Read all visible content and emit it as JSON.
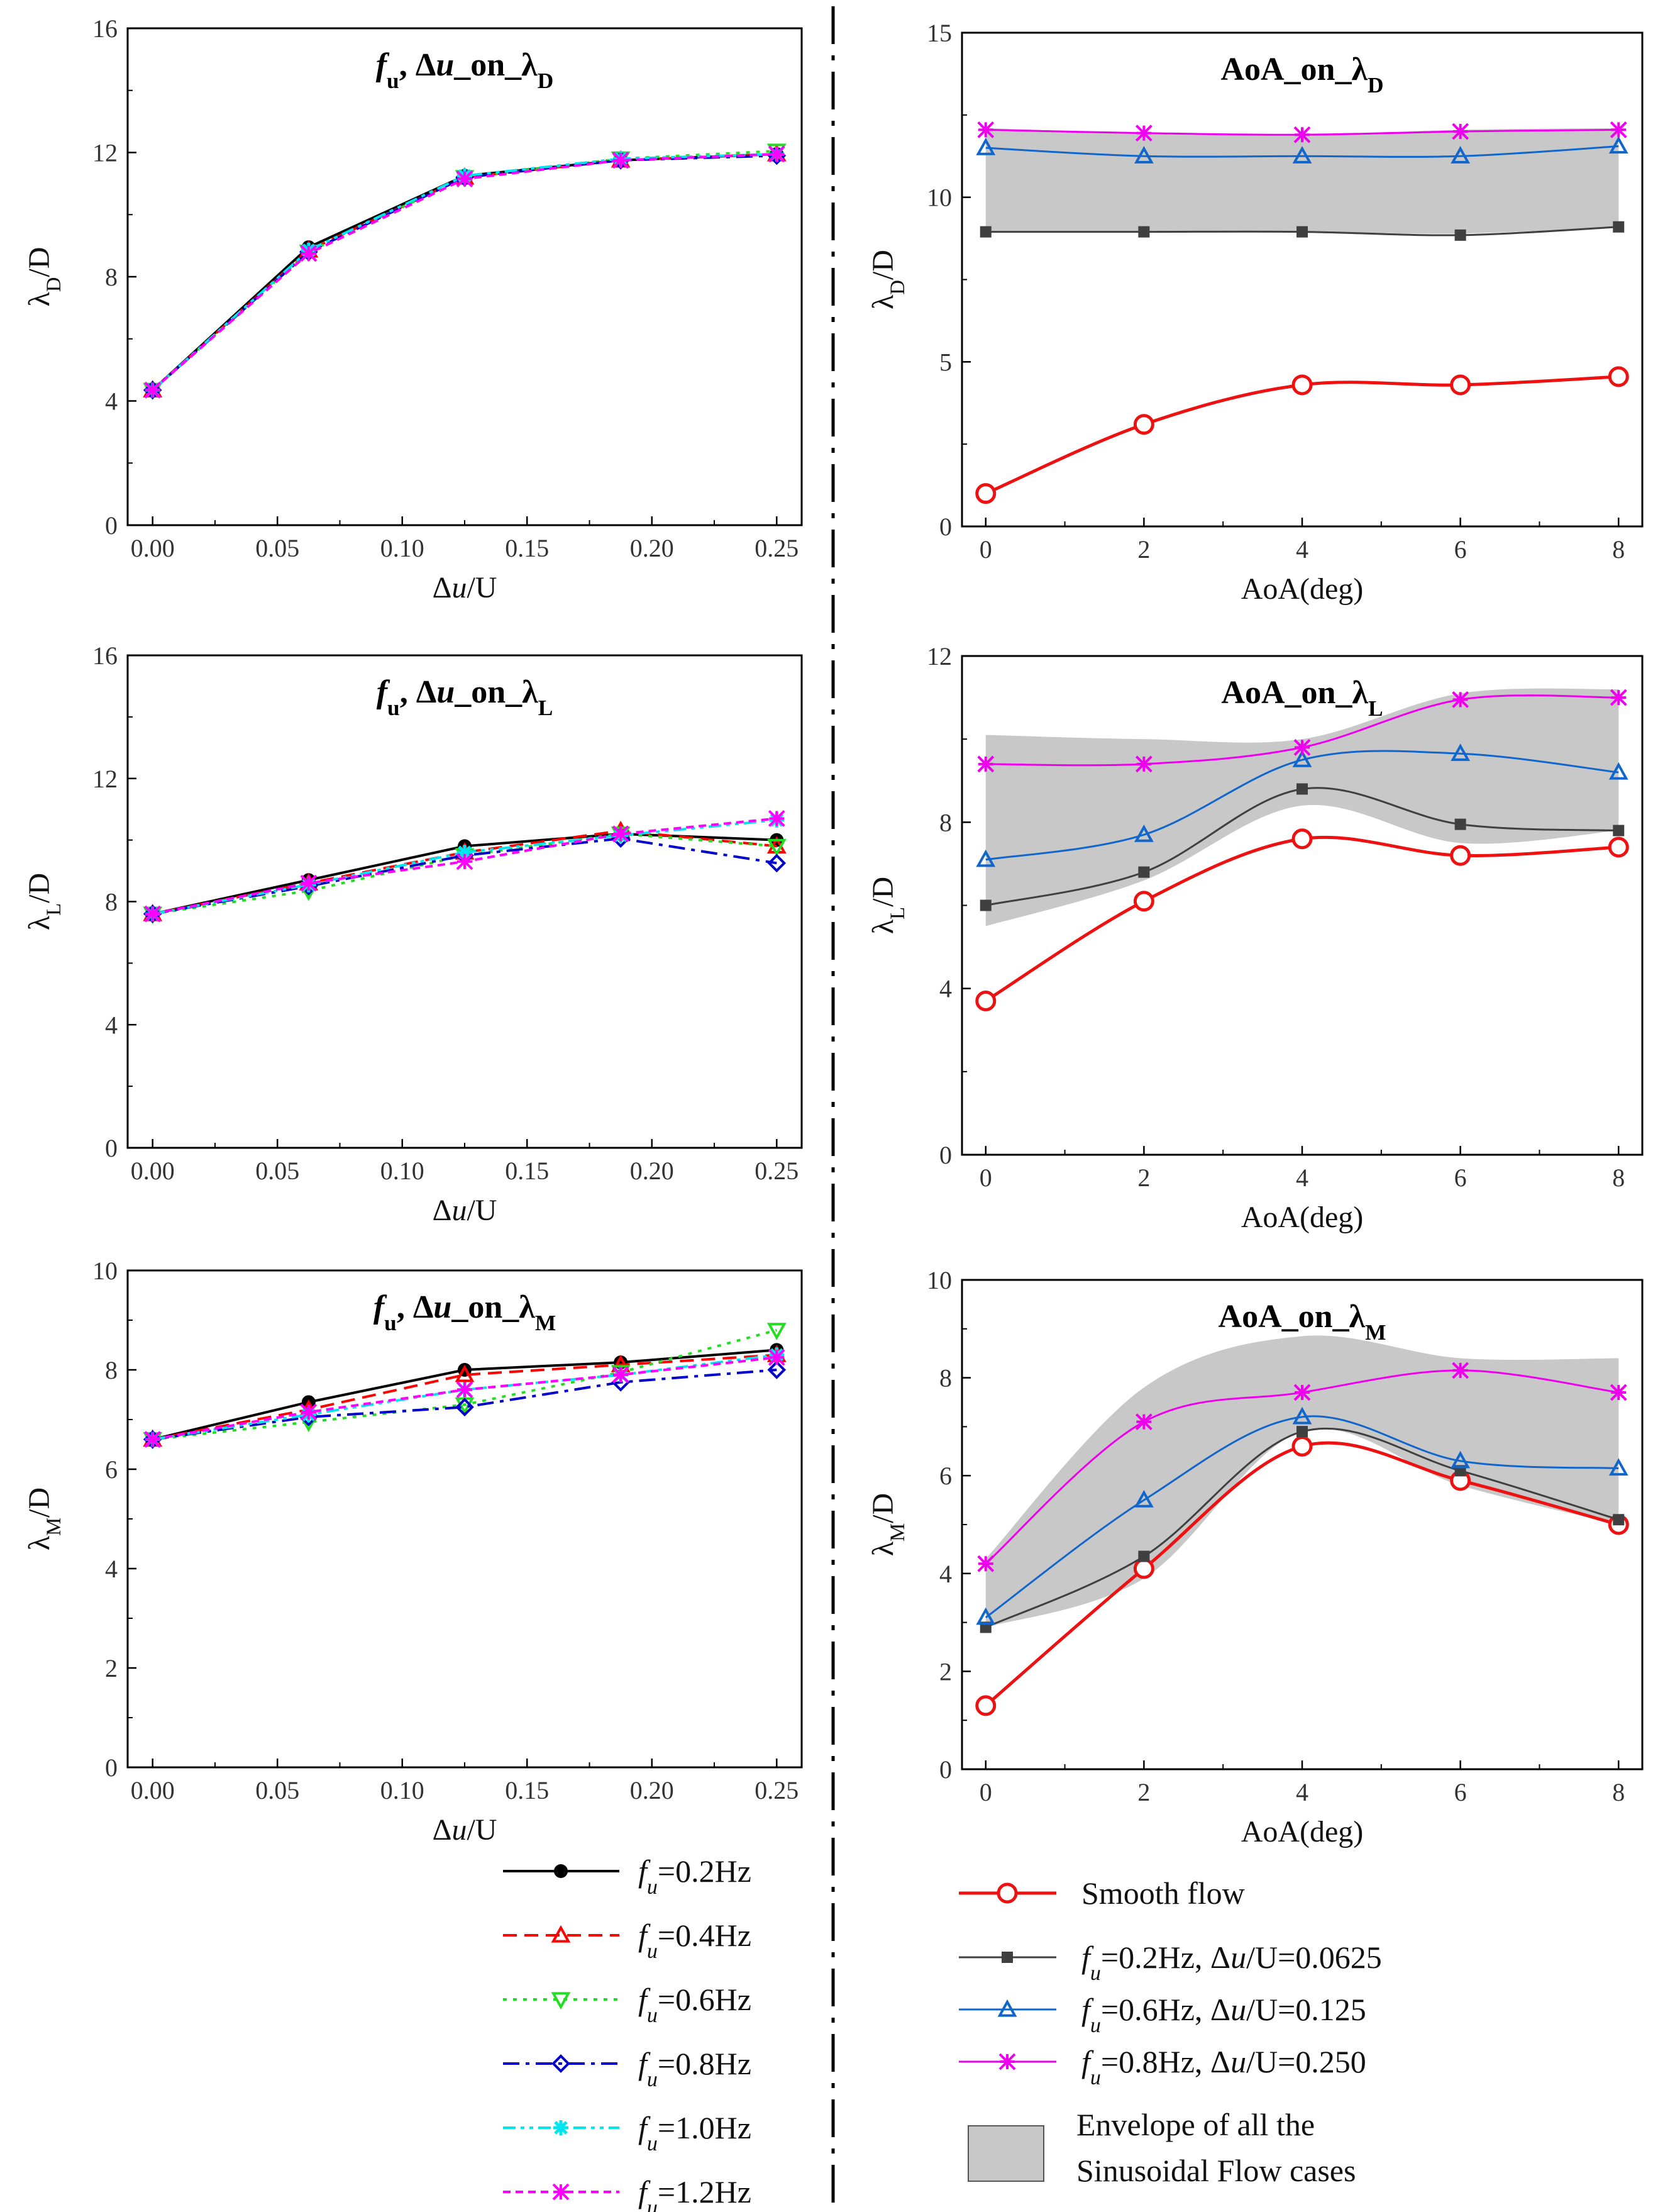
{
  "chart_data": [
    {
      "type": "line",
      "title": "f_u, Δu_on_λD",
      "title_parts": [
        "f",
        "u",
        ", Δ",
        "u",
        "_on_λ",
        "D"
      ],
      "xlabel": "Δu/U",
      "xlabel_parts": [
        "Δ",
        "u",
        "/U"
      ],
      "ylabel": "λD/D",
      "ylabel_parts": [
        "λ",
        "D",
        "/D"
      ],
      "xlim": [
        -0.01,
        0.26
      ],
      "ylim": [
        0,
        16
      ],
      "xticks": [
        0,
        0.05,
        0.1,
        0.15,
        0.2,
        0.25
      ],
      "xtick_labels": [
        "0.00",
        "0.05",
        "0.10",
        "0.15",
        "0.20",
        "0.25"
      ],
      "yticks": [
        0,
        4,
        8,
        12,
        16
      ],
      "ytick_labels": [
        "0",
        "4",
        "8",
        "12",
        "16"
      ],
      "x": [
        0,
        0.0625,
        0.125,
        0.1875,
        0.25
      ],
      "series": [
        {
          "name": "fu=0.2Hz",
          "values": [
            4.35,
            8.95,
            11.25,
            11.75,
            11.95
          ]
        },
        {
          "name": "fu=0.4Hz",
          "values": [
            4.35,
            8.85,
            11.2,
            11.75,
            11.95
          ]
        },
        {
          "name": "fu=0.6Hz",
          "values": [
            4.35,
            8.8,
            11.2,
            11.8,
            12.05
          ]
        },
        {
          "name": "fu=0.8Hz",
          "values": [
            4.35,
            8.8,
            11.2,
            11.75,
            11.9
          ]
        },
        {
          "name": "fu=1.0Hz",
          "values": [
            4.35,
            8.85,
            11.25,
            11.8,
            11.95
          ]
        },
        {
          "name": "fu=1.2Hz",
          "values": [
            4.35,
            8.75,
            11.15,
            11.75,
            11.95
          ]
        }
      ]
    },
    {
      "type": "line",
      "title": "AoA_on_λD",
      "title_parts": [
        "AoA_on_λ",
        "D"
      ],
      "xlabel": "AoA(deg)",
      "ylabel": "λD/D",
      "ylabel_parts": [
        "λ",
        "D",
        "/D"
      ],
      "xlim": [
        -0.3,
        8.3
      ],
      "ylim": [
        0,
        15
      ],
      "xticks": [
        0,
        2,
        4,
        6,
        8
      ],
      "xtick_labels": [
        "0",
        "2",
        "4",
        "6",
        "8"
      ],
      "yticks": [
        0,
        5,
        10,
        15
      ],
      "ytick_labels": [
        "0",
        "5",
        "10",
        "15"
      ],
      "x": [
        0,
        2,
        4,
        6,
        8
      ],
      "envelope": {
        "upper": [
          12.1,
          11.95,
          11.9,
          12.05,
          12.1
        ],
        "lower": [
          8.95,
          8.95,
          8.95,
          8.9,
          9.1
        ]
      },
      "series": [
        {
          "name": "Smooth flow",
          "values": [
            1.0,
            3.1,
            4.3,
            4.3,
            4.55
          ]
        },
        {
          "name": "fu=0.2Hz, Δu/U=0.0625",
          "values": [
            8.95,
            8.95,
            8.95,
            8.85,
            9.1
          ]
        },
        {
          "name": "fu=0.6Hz, Δu/U=0.125",
          "values": [
            11.5,
            11.25,
            11.25,
            11.25,
            11.55
          ]
        },
        {
          "name": "fu=0.8Hz, Δu/U=0.250",
          "values": [
            12.05,
            11.95,
            11.9,
            12.0,
            12.05
          ]
        }
      ]
    },
    {
      "type": "line",
      "title": "f_u, Δu_on_λL",
      "title_parts": [
        "f",
        "u",
        ", Δ",
        "u",
        "_on_λ",
        "L"
      ],
      "xlabel": "Δu/U",
      "xlabel_parts": [
        "Δ",
        "u",
        "/U"
      ],
      "ylabel": "λL/D",
      "ylabel_parts": [
        "λ",
        "L",
        "/D"
      ],
      "xlim": [
        -0.01,
        0.26
      ],
      "ylim": [
        0,
        16
      ],
      "xticks": [
        0,
        0.05,
        0.1,
        0.15,
        0.2,
        0.25
      ],
      "xtick_labels": [
        "0.00",
        "0.05",
        "0.10",
        "0.15",
        "0.20",
        "0.25"
      ],
      "yticks": [
        0,
        4,
        8,
        12,
        16
      ],
      "ytick_labels": [
        "0",
        "4",
        "8",
        "12",
        "16"
      ],
      "x": [
        0,
        0.0625,
        0.125,
        0.1875,
        0.25
      ],
      "series": [
        {
          "name": "fu=0.2Hz",
          "values": [
            7.6,
            8.7,
            9.8,
            10.2,
            10.0
          ]
        },
        {
          "name": "fu=0.4Hz",
          "values": [
            7.6,
            8.6,
            9.6,
            10.3,
            9.8
          ]
        },
        {
          "name": "fu=0.6Hz",
          "values": [
            7.6,
            8.35,
            9.5,
            10.2,
            9.8
          ]
        },
        {
          "name": "fu=0.8Hz",
          "values": [
            7.6,
            8.5,
            9.5,
            10.05,
            9.25
          ]
        },
        {
          "name": "fu=1.0Hz",
          "values": [
            7.6,
            8.55,
            9.6,
            10.15,
            10.65
          ]
        },
        {
          "name": "fu=1.2Hz",
          "values": [
            7.6,
            8.6,
            9.3,
            10.2,
            10.7
          ]
        }
      ]
    },
    {
      "type": "line",
      "title": "AoA_on_λL",
      "title_parts": [
        "AoA_on_λ",
        "L"
      ],
      "xlabel": "AoA(deg)",
      "ylabel": "λL/D",
      "ylabel_parts": [
        "λ",
        "L",
        "/D"
      ],
      "xlim": [
        -0.3,
        8.3
      ],
      "ylim": [
        0,
        12
      ],
      "xticks": [
        0,
        2,
        4,
        6,
        8
      ],
      "xtick_labels": [
        "0",
        "2",
        "4",
        "6",
        "8"
      ],
      "yticks": [
        0,
        4,
        8,
        12
      ],
      "ytick_labels": [
        "0",
        "4",
        "8",
        "12"
      ],
      "x": [
        0,
        2,
        4,
        6,
        8
      ],
      "envelope": {
        "upper": [
          10.1,
          10.0,
          10.0,
          11.1,
          11.2
        ],
        "lower": [
          5.5,
          6.6,
          8.4,
          7.5,
          7.8
        ]
      },
      "series": [
        {
          "name": "Smooth flow",
          "values": [
            3.7,
            6.1,
            7.6,
            7.2,
            7.4
          ]
        },
        {
          "name": "fu=0.2Hz, Δu/U=0.0625",
          "values": [
            6.0,
            6.8,
            8.8,
            7.95,
            7.8
          ]
        },
        {
          "name": "fu=0.6Hz, Δu/U=0.125",
          "values": [
            7.1,
            7.7,
            9.5,
            9.65,
            9.2
          ]
        },
        {
          "name": "fu=0.8Hz, Δu/U=0.250",
          "values": [
            9.4,
            9.4,
            9.8,
            10.95,
            11.0
          ]
        }
      ]
    },
    {
      "type": "line",
      "title": "f_u, Δu_on_λM",
      "title_parts": [
        "f",
        "u",
        ", Δ",
        "u",
        "_on_λ",
        "M"
      ],
      "xlabel": "Δu/U",
      "xlabel_parts": [
        "Δ",
        "u",
        "/U"
      ],
      "ylabel": "λM/D",
      "ylabel_parts": [
        "λ",
        "M",
        "/D"
      ],
      "xlim": [
        -0.01,
        0.26
      ],
      "ylim": [
        0,
        10
      ],
      "xticks": [
        0,
        0.05,
        0.1,
        0.15,
        0.2,
        0.25
      ],
      "xtick_labels": [
        "0.00",
        "0.05",
        "0.10",
        "0.15",
        "0.20",
        "0.25"
      ],
      "yticks": [
        0,
        2,
        4,
        6,
        8,
        10
      ],
      "ytick_labels": [
        "0",
        "2",
        "4",
        "6",
        "8",
        "10"
      ],
      "x": [
        0,
        0.0625,
        0.125,
        0.1875,
        0.25
      ],
      "series": [
        {
          "name": "fu=0.2Hz",
          "values": [
            6.6,
            7.35,
            8.0,
            8.15,
            8.4
          ]
        },
        {
          "name": "fu=0.4Hz",
          "values": [
            6.6,
            7.2,
            7.9,
            8.1,
            8.3
          ]
        },
        {
          "name": "fu=0.6Hz",
          "values": [
            6.6,
            6.95,
            7.3,
            7.95,
            8.8
          ]
        },
        {
          "name": "fu=0.8Hz",
          "values": [
            6.6,
            7.05,
            7.25,
            7.75,
            8.0
          ]
        },
        {
          "name": "fu=1.0Hz",
          "values": [
            6.6,
            7.1,
            7.6,
            7.9,
            8.3
          ]
        },
        {
          "name": "fu=1.2Hz",
          "values": [
            6.6,
            7.15,
            7.6,
            7.9,
            8.25
          ]
        }
      ]
    },
    {
      "type": "line",
      "title": "AoA_on_λM",
      "title_parts": [
        "AoA_on_λ",
        "M"
      ],
      "xlabel": "AoA(deg)",
      "ylabel": "λM/D",
      "ylabel_parts": [
        "λ",
        "M",
        "/D"
      ],
      "xlim": [
        -0.3,
        8.3
      ],
      "ylim": [
        0,
        10
      ],
      "xticks": [
        0,
        2,
        4,
        6,
        8
      ],
      "xtick_labels": [
        "0",
        "2",
        "4",
        "6",
        "8"
      ],
      "yticks": [
        0,
        2,
        4,
        6,
        8,
        10
      ],
      "ytick_labels": [
        "0",
        "2",
        "4",
        "6",
        "8",
        "10"
      ],
      "x": [
        0,
        2,
        4,
        6,
        8
      ],
      "envelope": {
        "upper": [
          4.3,
          7.8,
          8.85,
          8.4,
          8.4
        ],
        "lower": [
          2.9,
          3.9,
          6.9,
          5.8,
          5.0
        ]
      },
      "series": [
        {
          "name": "Smooth flow",
          "values": [
            1.3,
            4.1,
            6.6,
            5.9,
            5.0
          ]
        },
        {
          "name": "fu=0.2Hz, Δu/U=0.0625",
          "values": [
            2.9,
            4.35,
            6.9,
            6.1,
            5.1
          ]
        },
        {
          "name": "fu=0.6Hz, Δu/U=0.125",
          "values": [
            3.1,
            5.5,
            7.2,
            6.3,
            6.15
          ]
        },
        {
          "name": "fu=0.8Hz, Δu/U=0.250",
          "values": [
            4.2,
            7.1,
            7.7,
            8.15,
            7.7
          ]
        }
      ]
    }
  ],
  "legend_left": [
    {
      "f": "f",
      "sub": "u",
      "rest": "=0.2Hz"
    },
    {
      "f": "f",
      "sub": "u",
      "rest": "=0.4Hz"
    },
    {
      "f": "f",
      "sub": "u",
      "rest": "=0.6Hz"
    },
    {
      "f": "f",
      "sub": "u",
      "rest": "=0.8Hz"
    },
    {
      "f": "f",
      "sub": "u",
      "rest": "=1.0Hz"
    },
    {
      "f": "f",
      "sub": "u",
      "rest": "=1.2Hz"
    }
  ],
  "legend_right": {
    "smooth": "Smooth flow",
    "items": [
      {
        "f": "f",
        "sub": "u",
        "mid": "=0.2Hz, Δ",
        "u": "u",
        "rest": "/U=0.0625"
      },
      {
        "f": "f",
        "sub": "u",
        "mid": "=0.6Hz, Δ",
        "u": "u",
        "rest": "/U=0.125"
      },
      {
        "f": "f",
        "sub": "u",
        "mid": "=0.8Hz, Δ",
        "u": "u",
        "rest": "/U=0.250"
      }
    ],
    "envelope_line1": "Envelope of all the",
    "envelope_line2": "Sinusoidal  Flow  cases"
  },
  "colors": {
    "fu_0_2": "#000000",
    "fu_0_4": "#ff0000",
    "fu_0_6": "#22dd22",
    "fu_0_8": "#0000cc",
    "fu_1_0": "#00e5ee",
    "fu_1_2": "#ff00ff",
    "smooth": "#ee1111",
    "aoa_fu_0_2": "#404040",
    "aoa_fu_0_6": "#1166cc",
    "aoa_fu_0_8": "#ee00ee",
    "envelope": "#c8c8c8"
  }
}
